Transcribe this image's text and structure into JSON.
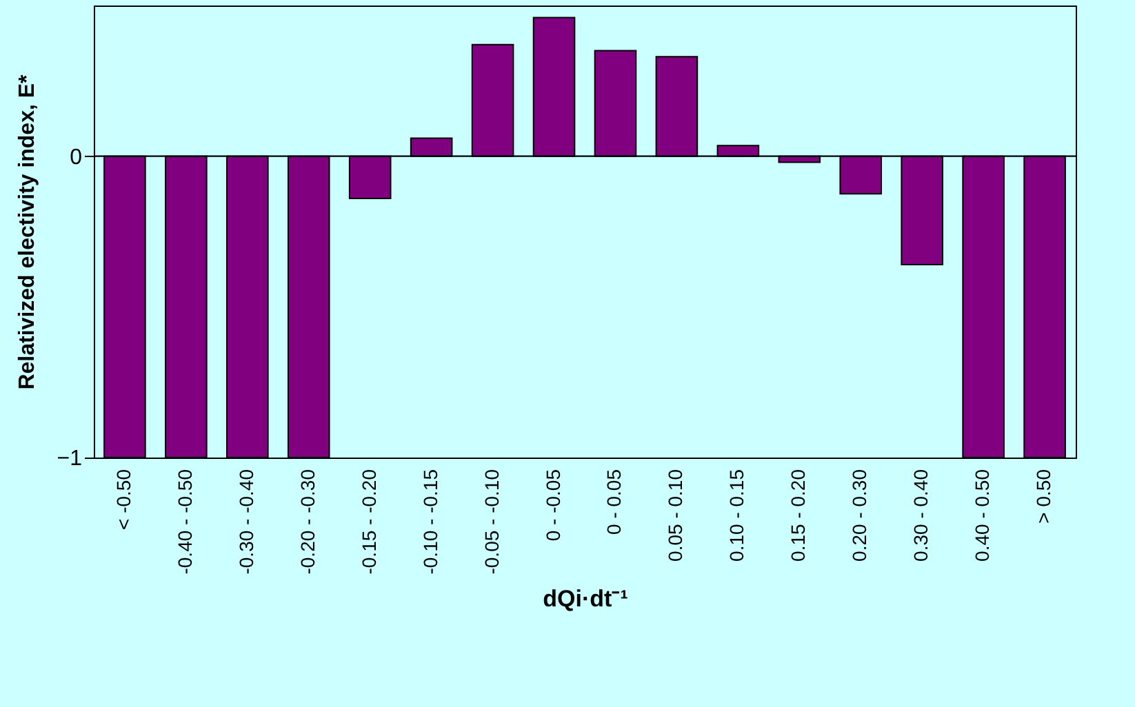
{
  "chart_data": {
    "type": "bar",
    "xlabel": "dQi·dt⁻¹",
    "ylabel": "Relativized electivity index, E*",
    "categories": [
      "< -0.50",
      "-0.40 - -0.50",
      "-0.30 - -0.40",
      "-0.20 - -0.30",
      "-0.15 - -0.20",
      "-0.10 - -0.15",
      "-0.05 - -0.10",
      "0 - -0.05",
      "0 - 0.05",
      "0.05 - 0.10",
      "0.10 - 0.15",
      "0.15 - 0.20",
      "0.20 - 0.30",
      "0.30 - 0.40",
      "0.40 - 0.50",
      "> 0.50"
    ],
    "values": [
      -1,
      -1,
      -1,
      -1,
      -0.14,
      0.06,
      0.37,
      0.46,
      0.35,
      0.33,
      0.035,
      -0.02,
      -0.125,
      -0.36,
      -1,
      -1
    ],
    "color": "#800080",
    "ylim": [
      -1,
      0.5
    ],
    "yticks": [
      -1,
      0
    ],
    "ref_lines": [
      {
        "axis": "y",
        "value": 0
      }
    ],
    "grid": false
  }
}
